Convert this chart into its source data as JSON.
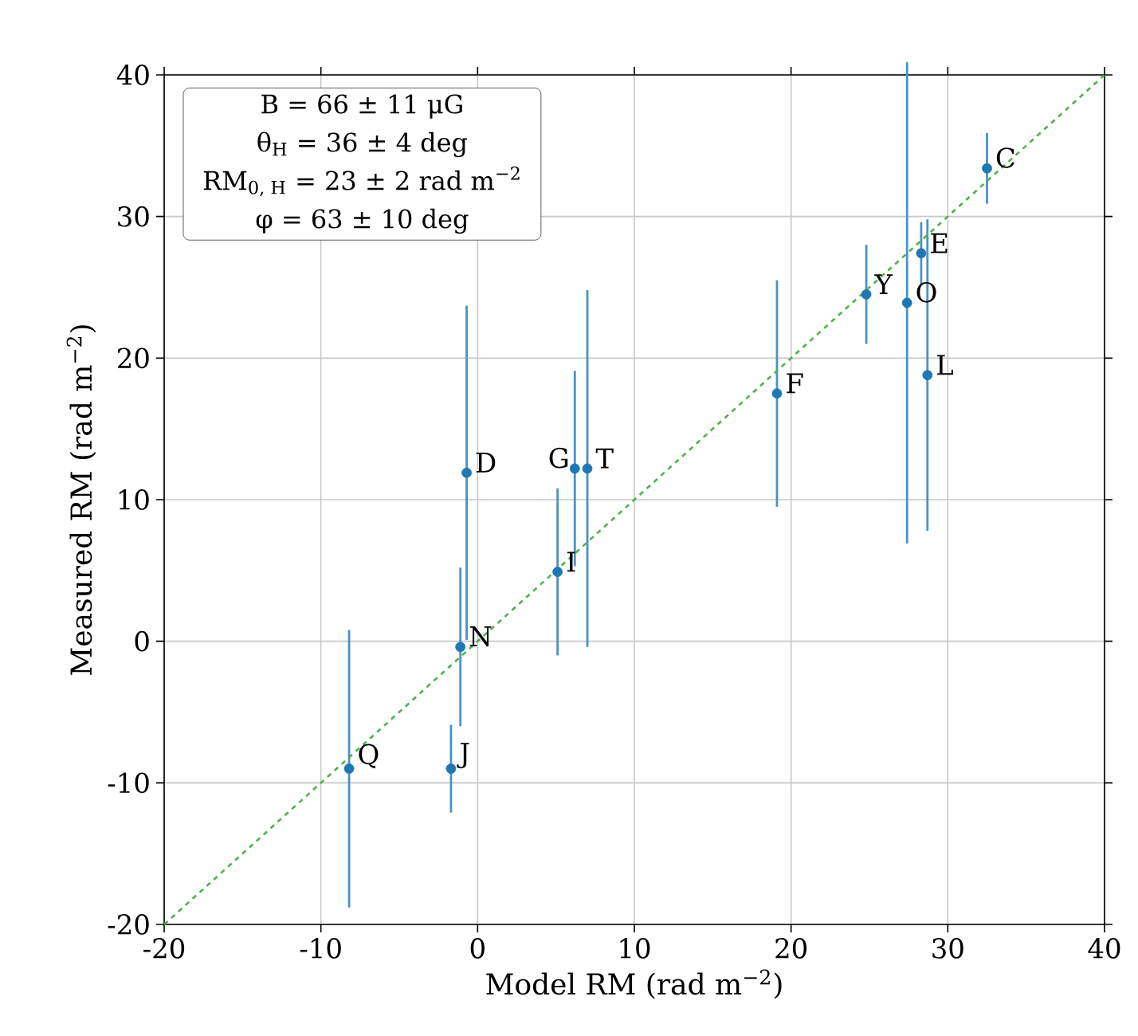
{
  "chart_data": {
    "type": "scatter",
    "xlabel": "Model RM (rad m$^{−2}$)",
    "ylabel": "Measured RM (rad m$^{−2}$)",
    "xlim": [
      -20,
      40
    ],
    "ylim": [
      -20,
      40
    ],
    "xticks": [
      -20,
      -10,
      0,
      10,
      20,
      30,
      40
    ],
    "yticks": [
      -20,
      -10,
      0,
      10,
      20,
      30,
      40
    ],
    "grid": true,
    "series": [
      {
        "color": "#1f77b4",
        "marker": "circle",
        "x": [
          -8.2,
          -1.7,
          -1.1,
          -0.7,
          5.1,
          6.2,
          7.0,
          19.1,
          24.8,
          27.4,
          28.3,
          28.7,
          32.5
        ],
        "values": [
          -9.0,
          -9.0,
          -0.4,
          11.9,
          4.9,
          12.2,
          12.2,
          17.5,
          24.5,
          23.9,
          27.4,
          18.8,
          33.4
        ],
        "errors": [
          9.8,
          3.1,
          5.6,
          11.8,
          5.9,
          6.9,
          12.6,
          8.0,
          3.5,
          17.0,
          2.2,
          11.0,
          2.5
        ]
      },
      {
        "type": "line",
        "color": "#4cb34c",
        "line_style": "dashed",
        "marker": "none",
        "x": [
          -20,
          40
        ],
        "values": [
          -20,
          40
        ]
      }
    ],
    "annotations": [
      "B = 66 ± 11 μG",
      "θ$_{H}$ = 36 ± 4 deg",
      "RM$_{0, H}$ = 23 ± 2 rad m$^{−2}$",
      "φ = 63 ± 10 deg",
      {
        "text": "Q",
        "x": -8.2,
        "y": -9.0
      },
      {
        "text": "J",
        "x": -1.7,
        "y": -9.0
      },
      {
        "text": "N",
        "x": -1.1,
        "y": -0.4
      },
      {
        "text": "D",
        "x": -0.7,
        "y": 11.9
      },
      {
        "text": "I",
        "x": 5.1,
        "y": 4.9
      },
      {
        "text": "G",
        "x": 6.2,
        "y": 12.2
      },
      {
        "text": "T",
        "x": 7.0,
        "y": 12.2
      },
      {
        "text": "F",
        "x": 19.1,
        "y": 17.5
      },
      {
        "text": "Y",
        "x": 24.8,
        "y": 24.5
      },
      {
        "text": "O",
        "x": 27.4,
        "y": 23.9
      },
      {
        "text": "E",
        "x": 28.3,
        "y": 27.4
      },
      {
        "text": "L",
        "x": 28.7,
        "y": 18.8
      },
      {
        "text": "C",
        "x": 32.5,
        "y": 33.4
      }
    ]
  }
}
